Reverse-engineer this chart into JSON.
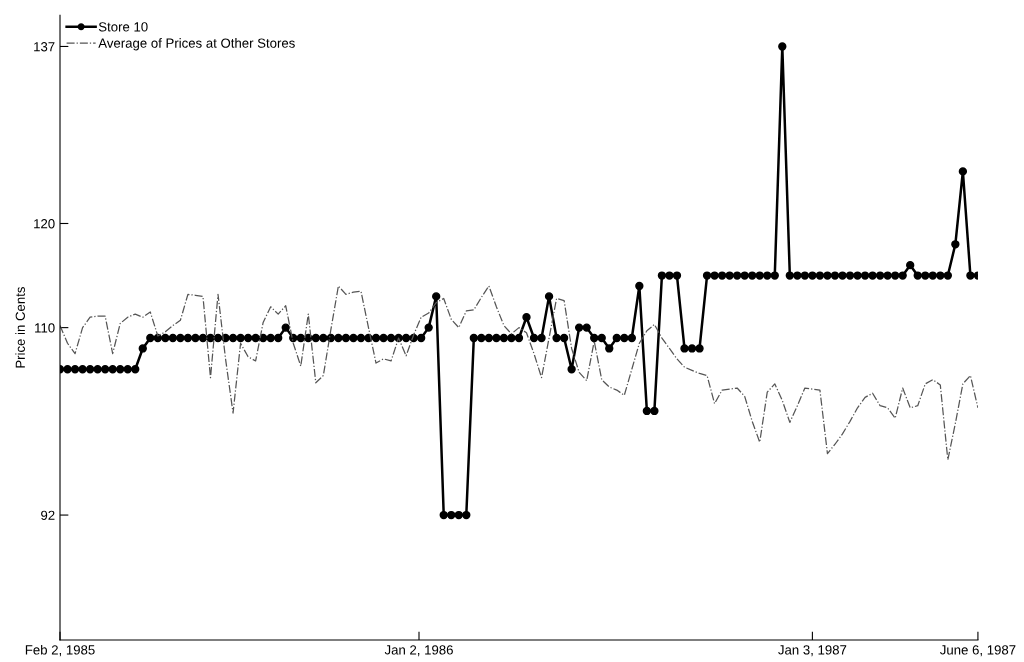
{
  "chart_data": {
    "type": "line",
    "ylabel": "Price in Cents",
    "x": [
      "1985-02-02",
      "1985-02-09",
      "1985-02-16",
      "1985-02-23",
      "1985-03-02",
      "1985-03-09",
      "1985-03-16",
      "1985-03-23",
      "1985-03-30",
      "1985-04-06",
      "1985-04-13",
      "1985-04-20",
      "1985-04-27",
      "1985-05-04",
      "1985-05-11",
      "1985-05-18",
      "1985-05-25",
      "1985-06-01",
      "1985-06-08",
      "1985-06-15",
      "1985-06-22",
      "1985-06-29",
      "1985-07-06",
      "1985-07-13",
      "1985-07-20",
      "1985-07-27",
      "1985-08-03",
      "1985-08-10",
      "1985-08-17",
      "1985-08-24",
      "1985-08-31",
      "1985-09-07",
      "1985-09-14",
      "1985-09-21",
      "1985-09-28",
      "1985-10-05",
      "1985-10-12",
      "1985-10-19",
      "1985-10-26",
      "1985-11-02",
      "1985-11-09",
      "1985-11-16",
      "1985-11-23",
      "1985-11-30",
      "1985-12-07",
      "1985-12-14",
      "1985-12-21",
      "1985-12-28",
      "1986-01-04",
      "1986-01-11",
      "1986-01-18",
      "1986-01-25",
      "1986-02-01",
      "1986-02-08",
      "1986-02-15",
      "1986-02-22",
      "1986-03-01",
      "1986-03-08",
      "1986-03-15",
      "1986-03-22",
      "1986-03-29",
      "1986-04-05",
      "1986-04-12",
      "1986-04-19",
      "1986-04-26",
      "1986-05-03",
      "1986-05-10",
      "1986-05-17",
      "1986-05-24",
      "1986-05-31",
      "1986-06-07",
      "1986-06-14",
      "1986-06-21",
      "1986-06-28",
      "1986-07-05",
      "1986-07-12",
      "1986-07-19",
      "1986-07-26",
      "1986-08-02",
      "1986-08-09",
      "1986-08-16",
      "1986-08-23",
      "1986-08-30",
      "1986-09-06",
      "1986-09-13",
      "1986-09-20",
      "1986-09-27",
      "1986-10-04",
      "1986-10-11",
      "1986-10-18",
      "1986-10-25",
      "1986-11-01",
      "1986-11-08",
      "1986-11-15",
      "1986-11-22",
      "1986-11-29",
      "1986-12-06",
      "1986-12-13",
      "1986-12-20",
      "1986-12-27",
      "1987-01-03",
      "1987-01-10",
      "1987-01-17",
      "1987-01-24",
      "1987-01-31",
      "1987-02-07",
      "1987-02-14",
      "1987-02-21",
      "1987-02-28",
      "1987-03-07",
      "1987-03-14",
      "1987-03-21",
      "1987-03-28",
      "1987-04-04",
      "1987-04-11",
      "1987-04-18",
      "1987-04-25",
      "1987-05-02",
      "1987-05-09",
      "1987-05-16",
      "1987-05-23",
      "1987-05-30",
      "1987-06-06"
    ],
    "series": [
      {
        "name": "Store 10",
        "color": "#000000",
        "marker": "circle",
        "line_style": "solid",
        "values": [
          106,
          106,
          106,
          106,
          106,
          106,
          106,
          106,
          106,
          106,
          106,
          108,
          109,
          109,
          109,
          109,
          109,
          109,
          109,
          109,
          109,
          109,
          109,
          109,
          109,
          109,
          109,
          109,
          109,
          109,
          110,
          109,
          109,
          109,
          109,
          109,
          109,
          109,
          109,
          109,
          109,
          109,
          109,
          109,
          109,
          109,
          109,
          109,
          109,
          110,
          113,
          92,
          92,
          92,
          92,
          109,
          109,
          109,
          109,
          109,
          109,
          109,
          111,
          109,
          109,
          113,
          109,
          109,
          106,
          110,
          110,
          109,
          109,
          108,
          109,
          109,
          109,
          114,
          102,
          102,
          115,
          115,
          115,
          108,
          108,
          108,
          115,
          115,
          115,
          115,
          115,
          115,
          115,
          115,
          115,
          115,
          137,
          115,
          115,
          115,
          115,
          115,
          115,
          115,
          115,
          115,
          115,
          115,
          115,
          115,
          115,
          115,
          115,
          116,
          115,
          115,
          115,
          115,
          115,
          118,
          125,
          115,
          115
        ]
      },
      {
        "name": "Average of Prices at Other Stores",
        "color": "#555555",
        "marker": "none",
        "line_style": "dashdot",
        "values": [
          110.2,
          108.5,
          107.5,
          110,
          111,
          111.1,
          111.1,
          107.5,
          110.4,
          111,
          111.3,
          111,
          111.5,
          109.2,
          109.6,
          110.2,
          110.7,
          113.2,
          113.1,
          113,
          105.2,
          113.2,
          107,
          101.8,
          108.5,
          107.2,
          106.8,
          110.5,
          112,
          111.3,
          112.1,
          108.5,
          106.3,
          111.3,
          104.7,
          105.4,
          109.8,
          114,
          113.2,
          113.4,
          113.5,
          110,
          106.6,
          107,
          106.8,
          109,
          107.3,
          109.3,
          111,
          111.4,
          112.4,
          112.8,
          110.8,
          110,
          111.6,
          111.7,
          112.9,
          114,
          112,
          110.2,
          109.4,
          110,
          109.5,
          107.5,
          105.2,
          109,
          112.8,
          112.6,
          108,
          105.7,
          104.9,
          108.7,
          105,
          104.3,
          104,
          103.5,
          106,
          108.5,
          109.7,
          110.3,
          109,
          108,
          107,
          106.2,
          105.9,
          105.6,
          105.4,
          102.7,
          104,
          104.1,
          104.2,
          103.4,
          101,
          99,
          103.8,
          104.6,
          103,
          100.9,
          102.5,
          104.2,
          104.1,
          104,
          97.9,
          98.8,
          99.8,
          101,
          102.3,
          103.3,
          103.7,
          102.5,
          102.3,
          101.3,
          104.2,
          102.3,
          102.5,
          104.6,
          105,
          104.5,
          97.3,
          100.8,
          104.6,
          105.4,
          102.3
        ]
      }
    ],
    "xlim": [
      "1985-02-02",
      "1987-06-06"
    ],
    "xticks": [
      {
        "value": "1985-02-02",
        "label": "Feb 2, 1985"
      },
      {
        "value": "1986-01-02",
        "label": "Jan 2, 1986"
      },
      {
        "value": "1987-01-03",
        "label": "Jan 3, 1987"
      },
      {
        "value": "1987-06-06",
        "label": "June 6, 1987"
      }
    ],
    "ylim": [
      80,
      140
    ],
    "yticks": [
      92,
      110,
      120,
      137
    ],
    "grid": false,
    "legend": "top left"
  }
}
